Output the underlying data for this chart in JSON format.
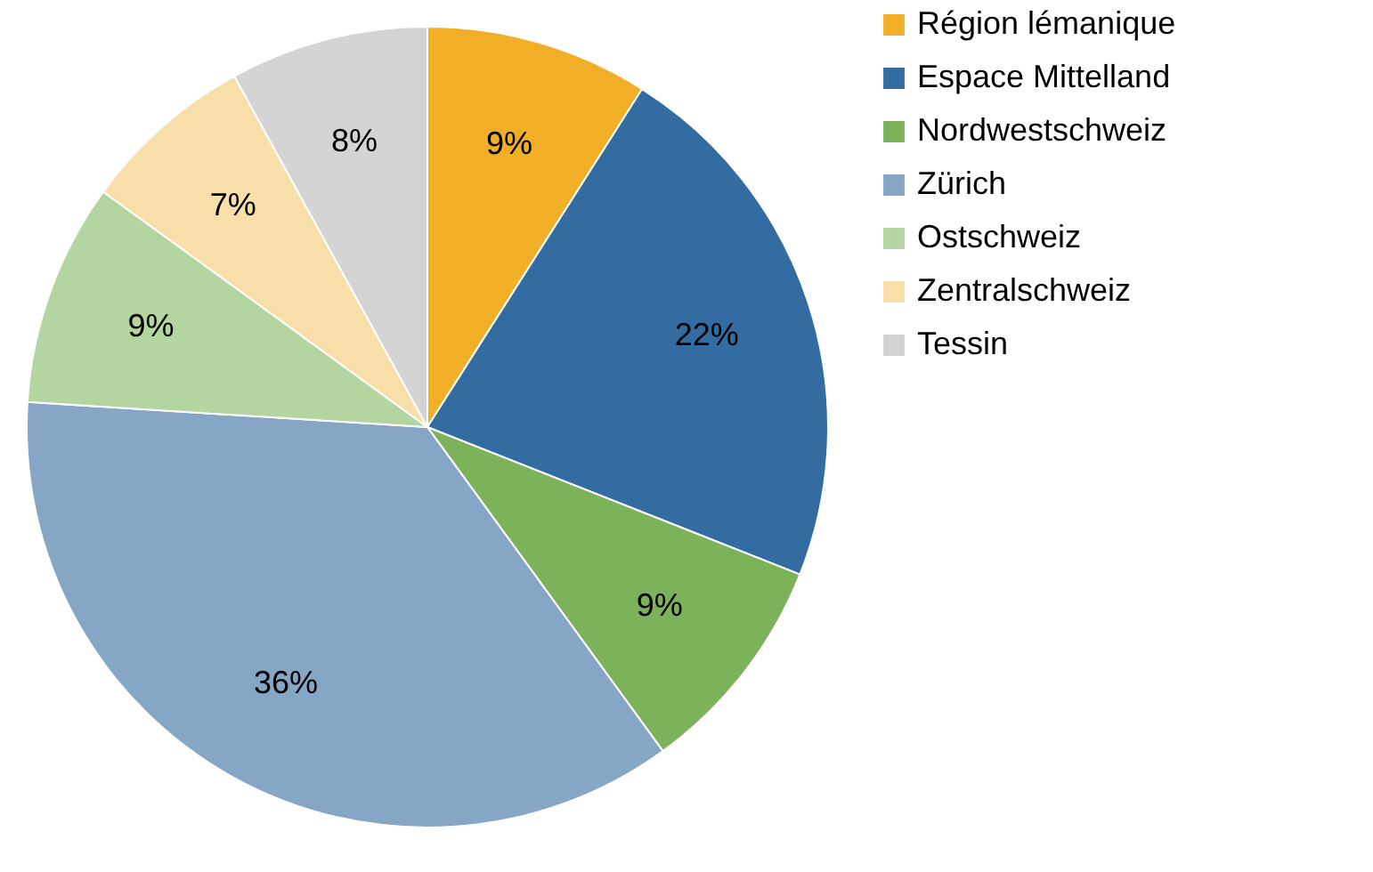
{
  "chart_data": {
    "type": "pie",
    "categories": [
      "Région lémanique",
      "Espace Mittelland",
      "Nordwestschweiz",
      "Zürich",
      "Ostschweiz",
      "Zentralschweiz",
      "Tessin"
    ],
    "values": [
      9,
      22,
      9,
      36,
      9,
      7,
      8
    ],
    "colors": [
      "#f0af26",
      "#336ca0",
      "#7cb35a",
      "#86a6c6",
      "#b3d59f",
      "#f8dfaa",
      "#d4d4d4"
    ],
    "value_labels": [
      "9%",
      "22%",
      "9%",
      "36%",
      "9%",
      "7%",
      "8%"
    ],
    "legend": "right"
  }
}
